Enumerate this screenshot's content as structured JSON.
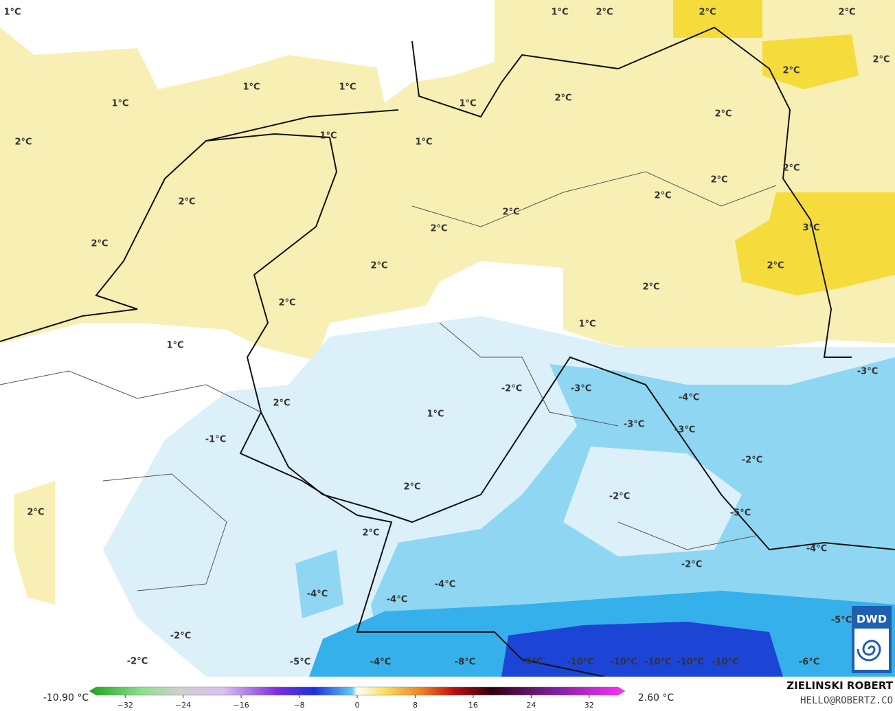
{
  "map": {
    "labels": [
      "1°C",
      "1°C",
      "2°C",
      "2°C",
      "2°C",
      "2°C",
      "2°C",
      "1°C",
      "1°C",
      "1°C",
      "1°C",
      "2°C",
      "2°C",
      "1°C",
      "1°C",
      "2°C",
      "2°C",
      "2°C",
      "2°C",
      "2°C",
      "2°C",
      "2°C",
      "3°C",
      "2°C",
      "2°C",
      "2°C",
      "2°C",
      "2°C",
      "1°C",
      "1°C",
      "-3°C",
      "-2°C",
      "-3°C",
      "-4°C",
      "2°C",
      "1°C",
      "-3°C",
      "-3°C",
      "-1°C",
      "-2°C",
      "-2°C",
      "2°C",
      "2°C",
      "-5°C",
      "2°C",
      "-4°C",
      "-2°C",
      "-4°C",
      "-4°C",
      "-4°C",
      "-5°C",
      "-2°C",
      "-2°C",
      "-5°C",
      "-4°C",
      "-8°C",
      "-9°C",
      "-10°C",
      "-10°C",
      "-10°C",
      "-10°C",
      "-10°C",
      "-6°C"
    ],
    "colorbar": {
      "min_label": "-10.90 °C",
      "max_label": "2.60 °C",
      "ticks": [
        {
          "value": -32,
          "label": "−32"
        },
        {
          "value": -24,
          "label": "−24"
        },
        {
          "value": -16,
          "label": "−16"
        },
        {
          "value": -8,
          "label": "−8"
        },
        0,
        8,
        16,
        24,
        32
      ],
      "range": [
        -36,
        36
      ]
    },
    "credit": "ZIELINSKI ROBERT",
    "contact": "HELLO@ROBERTZ.CO",
    "logo": "DWD"
  }
}
